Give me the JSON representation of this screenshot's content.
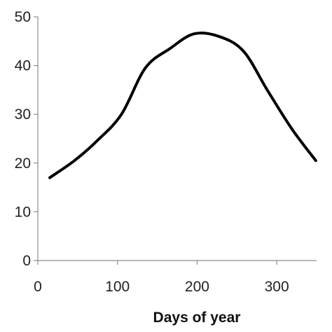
{
  "chart_data": {
    "type": "line",
    "title": "",
    "xlabel": "Days of year",
    "ylabel": "",
    "xlim": [
      0,
      350
    ],
    "ylim": [
      0,
      50
    ],
    "grid": false,
    "legend": "none",
    "x_ticks": [
      {
        "value": 0,
        "label": "0"
      },
      {
        "value": 100,
        "label": "100"
      },
      {
        "value": 200,
        "label": "200"
      },
      {
        "value": 300,
        "label": "300"
      }
    ],
    "y_ticks": [
      {
        "value": 0,
        "label": "0"
      },
      {
        "value": 10,
        "label": "10"
      },
      {
        "value": 20,
        "label": "20"
      },
      {
        "value": 30,
        "label": "30"
      },
      {
        "value": 40,
        "label": "40"
      },
      {
        "value": 50,
        "label": "50"
      }
    ],
    "series": [
      {
        "color": "#000000",
        "x": [
          15,
          46,
          74,
          105,
          135,
          166,
          196,
          227,
          258,
          288,
          319,
          349
        ],
        "y": [
          17,
          20.5,
          24.5,
          30,
          39.5,
          43.5,
          46.5,
          46,
          43,
          35,
          27,
          20.5
        ]
      }
    ]
  }
}
